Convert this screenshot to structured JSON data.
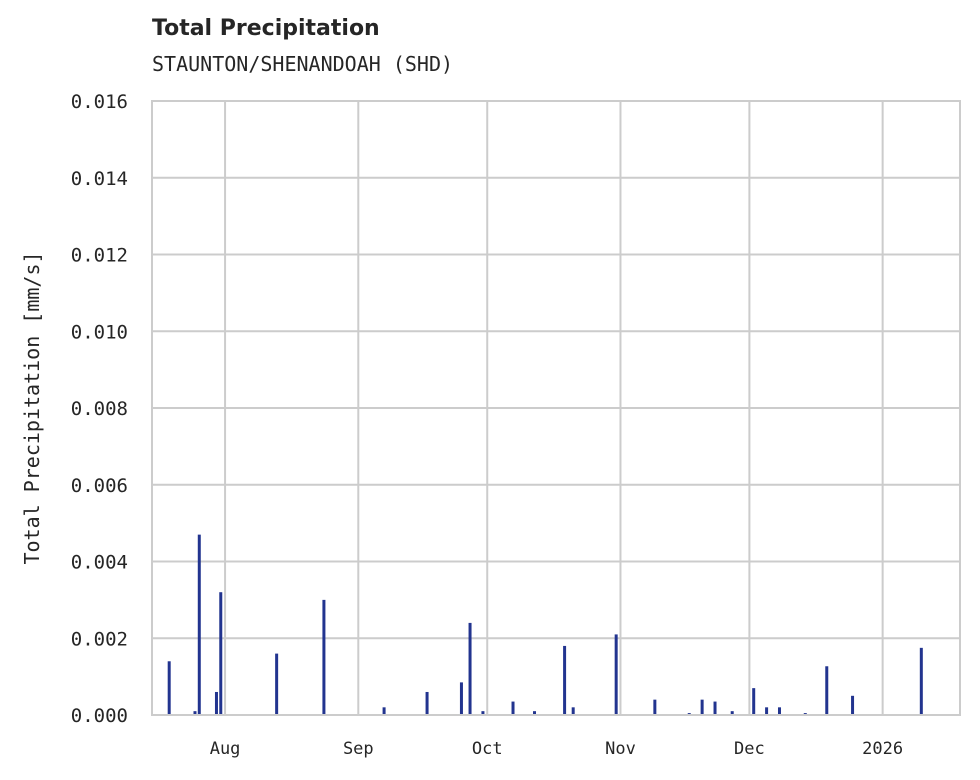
{
  "chart_data": {
    "type": "bar",
    "title": "Total Precipitation",
    "subtitle": "STAUNTON/SHENANDOAH (SHD)",
    "xlabel": "",
    "ylabel": "Total Precipitation [mm/s]",
    "ylim": [
      0,
      0.016
    ],
    "yticks": [
      "0.000",
      "0.002",
      "0.004",
      "0.006",
      "0.008",
      "0.010",
      "0.012",
      "0.014",
      "0.016"
    ],
    "xticks": [
      "Aug",
      "Sep",
      "Oct",
      "Nov",
      "Dec",
      "2026"
    ],
    "grid": true,
    "bar_color": "#22348f",
    "x": [
      "2025-07-19",
      "2025-07-25",
      "2025-07-26",
      "2025-07-30",
      "2025-07-31",
      "2025-08-13",
      "2025-08-24",
      "2025-09-07",
      "2025-09-17",
      "2025-09-25",
      "2025-09-27",
      "2025-09-30",
      "2025-10-07",
      "2025-10-12",
      "2025-10-19",
      "2025-10-21",
      "2025-10-31",
      "2025-11-09",
      "2025-11-17",
      "2025-11-20",
      "2025-11-23",
      "2025-11-27",
      "2025-12-02",
      "2025-12-05",
      "2025-12-08",
      "2025-12-14",
      "2025-12-19",
      "2025-12-25",
      "2026-01-10"
    ],
    "values": [
      0.0014,
      0.0001,
      0.0047,
      0.0006,
      0.0032,
      0.0016,
      0.003,
      0.0002,
      0.0006,
      0.00085,
      0.0024,
      0.0001,
      0.00035,
      0.0001,
      0.0018,
      0.0002,
      0.0021,
      0.0004,
      5e-05,
      0.0004,
      0.00035,
      0.0001,
      0.0007,
      0.0002,
      0.0002,
      5e-05,
      0.00127,
      0.0005,
      0.00175
    ]
  }
}
